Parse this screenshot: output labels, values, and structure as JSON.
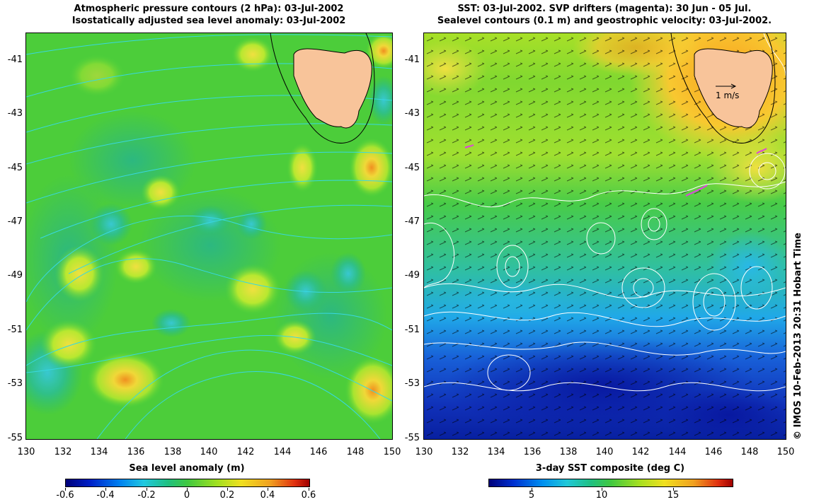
{
  "left_panel": {
    "title_line1": "Atmospheric pressure contours (2 hPa): 03-Jul-2002",
    "title_line2": "Isostatically adjusted sea level anomaly: 03-Jul-2002",
    "colorbar_label": "Sea level anomaly (m)",
    "colorbar_ticks": [
      "-0.6",
      "-0.4",
      "-0.2",
      "0",
      "0.2",
      "0.4",
      "0.6"
    ],
    "colorbar_range": [
      -0.6,
      0.6
    ]
  },
  "right_panel": {
    "title_line1": "SST: 03-Jul-2002. SVP drifters (magenta): 30 Jun - 05 Jul.",
    "title_line2": "Sealevel contours (0.1 m) and geostrophic velocity: 03-Jul-2002.",
    "colorbar_label": "3-day SST composite (deg C)",
    "colorbar_ticks": [
      "5",
      "10",
      "15"
    ],
    "colorbar_range": [
      1.5,
      19.5
    ],
    "scale_arrow_label": "1 m/s"
  },
  "axes": {
    "lat_ticks": [
      "-41",
      "-43",
      "-45",
      "-47",
      "-49",
      "-51",
      "-53",
      "-55"
    ],
    "lon_ticks": [
      "130",
      "132",
      "134",
      "136",
      "138",
      "140",
      "142",
      "144",
      "146",
      "148",
      "150"
    ],
    "lat_range": [
      -55,
      -40.3
    ],
    "lon_range": [
      130,
      150
    ]
  },
  "credit": "© IMOS 10-Feb-2013 20:31 Hobart Time",
  "colors": {
    "land": "#f8c49a",
    "ocean_green": "#3fd23a",
    "contour_cyan": "#38d8e0",
    "drifter": "#e040e0"
  }
}
